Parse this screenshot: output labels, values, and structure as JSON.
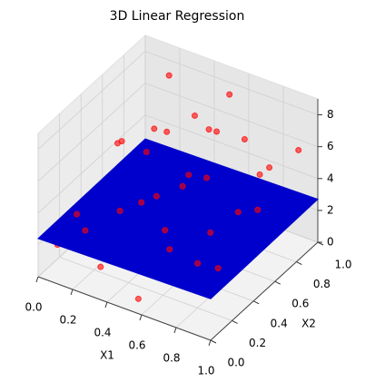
{
  "chart_data": {
    "type": "scatter3d",
    "title": "3D Linear Regression",
    "xlabel": "X1",
    "ylabel": "X2",
    "xlim": [
      0,
      1
    ],
    "ylim": [
      0,
      1
    ],
    "zlim": [
      0,
      9
    ],
    "xticks": [
      {
        "value": 0,
        "label": "0.0"
      },
      0.2,
      0.4,
      0.6,
      0.8,
      {
        "value": 1,
        "label": "1.0"
      }
    ],
    "yticks": [
      {
        "value": 0,
        "label": "0.0"
      },
      0.2,
      0.4,
      0.6,
      0.8,
      {
        "value": 1,
        "label": "1.0"
      }
    ],
    "zticks": [
      0,
      2,
      4,
      6,
      8
    ],
    "grid": true,
    "point_color": "#ff0000",
    "surface_color": "#0000cc",
    "surface": {
      "z": [
        [
          2.4,
          2.5
        ],
        [
          2.6,
          2.7
        ]
      ]
    },
    "x": [
      0.1,
      0.3,
      0.5,
      0.7,
      0.9,
      0.2,
      0.4,
      0.6,
      0.8,
      0.15,
      0.35,
      0.55,
      0.75,
      0.95,
      0.05,
      0.25,
      0.45,
      0.65,
      0.85,
      0.05,
      0.3,
      0.5,
      0.7,
      0.9,
      0.2,
      0.4,
      0.6,
      0.8,
      0.1,
      0.35,
      0.55,
      0.75,
      0.95,
      0.12,
      0.42,
      0.62,
      0.82,
      0.28,
      0.48,
      0.68,
      0.88,
      0.18,
      0.58,
      0.78,
      0.38
    ],
    "y": [
      0.2,
      0.1,
      0.3,
      0.8,
      0.6,
      0.9,
      0.7,
      0.5,
      0.2,
      0.5,
      0.4,
      0.9,
      0.4,
      0.9,
      0.7,
      0.3,
      0.1,
      0.2,
      0.7,
      0.1,
      0.6,
      0.6,
      0.1,
      0.3,
      0.4,
      0.95,
      0.7,
      0.5,
      0.85,
      0.2,
      0.05,
      0.95,
      0.15,
      0.35,
      0.55,
      0.35,
      0.85,
      0.75,
      0.8,
      0.6,
      0.45,
      0.15,
      0.25,
      0.3,
      0.85
    ],
    "z": [
      3.1,
      1.2,
      5.2,
      6.5,
      4.1,
      7.9,
      2.2,
      0.4,
      2.8,
      5.9,
      3.6,
      8.1,
      3.3,
      6.2,
      4.4,
      0.8,
      2.5,
      1.1,
      5.5,
      1.6,
      6.8,
      4.7,
      3.9,
      1.9,
      2.0,
      5.0,
      7.2,
      2.6,
      3.0,
      4.3,
      0.5,
      4.0,
      3.4,
      0.9,
      1.5,
      6.0,
      2.3,
      5.6,
      3.2,
      1.3,
      4.8,
      2.7,
      3.7,
      0.7,
      6.4
    ]
  }
}
